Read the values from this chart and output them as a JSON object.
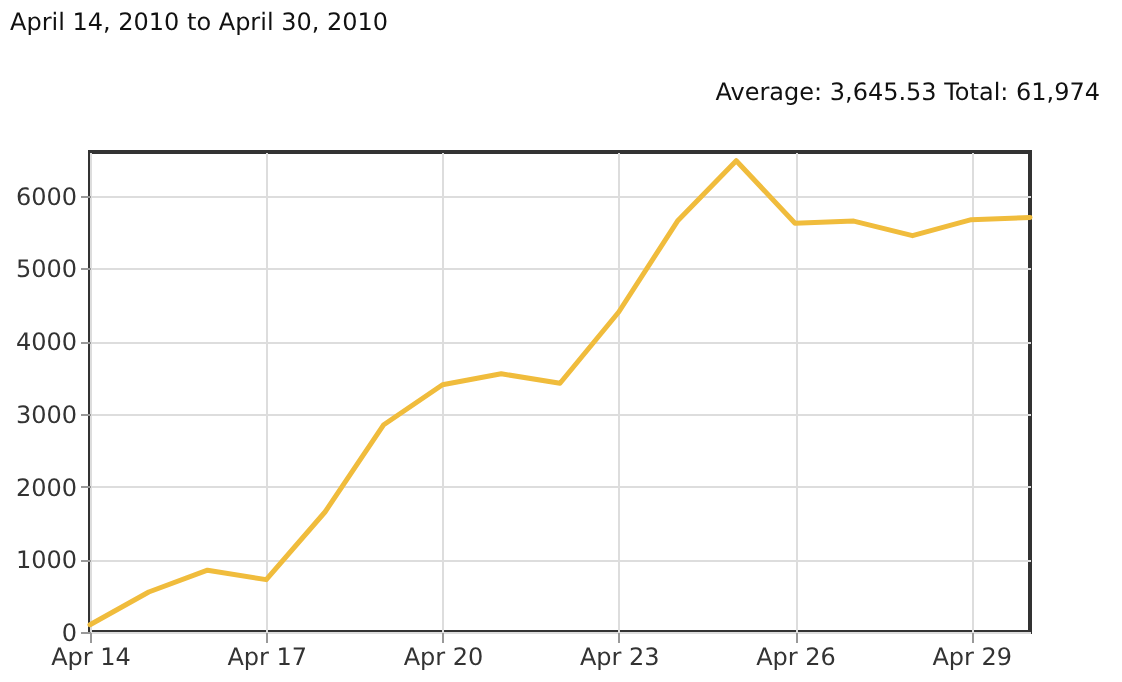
{
  "chart_data": {
    "type": "line",
    "title": "April 14, 2010 to April 30, 2010",
    "annotations": [
      "Average: 3,645.53  Total: 61,974"
    ],
    "x": [
      "2010-04-14",
      "2010-04-15",
      "2010-04-16",
      "2010-04-17",
      "2010-04-18",
      "2010-04-19",
      "2010-04-20",
      "2010-04-21",
      "2010-04-22",
      "2010-04-23",
      "2010-04-24",
      "2010-04-25",
      "2010-04-26",
      "2010-04-27",
      "2010-04-28",
      "2010-04-29",
      "2010-04-30"
    ],
    "series": [
      {
        "color": "#f0bc3c",
        "values": [
          100,
          550,
          850,
          720,
          1650,
          2850,
          3400,
          3550,
          3420,
          4400,
          5650,
          6480,
          5620,
          5650,
          5450,
          5670,
          5700
        ]
      }
    ],
    "xlim": [
      "2010-04-14",
      "2010-04-30"
    ],
    "xticks": [
      {
        "value": "2010-04-14",
        "label": "Apr 14"
      },
      {
        "value": "2010-04-17",
        "label": "Apr 17"
      },
      {
        "value": "2010-04-20",
        "label": "Apr 20"
      },
      {
        "value": "2010-04-23",
        "label": "Apr 23"
      },
      {
        "value": "2010-04-26",
        "label": "Apr 26"
      },
      {
        "value": "2010-04-29",
        "label": "Apr 29"
      }
    ],
    "ylim": [
      0,
      6600
    ],
    "yticks": [
      0,
      1000,
      2000,
      3000,
      4000,
      5000,
      6000
    ],
    "grid": true,
    "marker": "none",
    "line_style": "solid"
  }
}
